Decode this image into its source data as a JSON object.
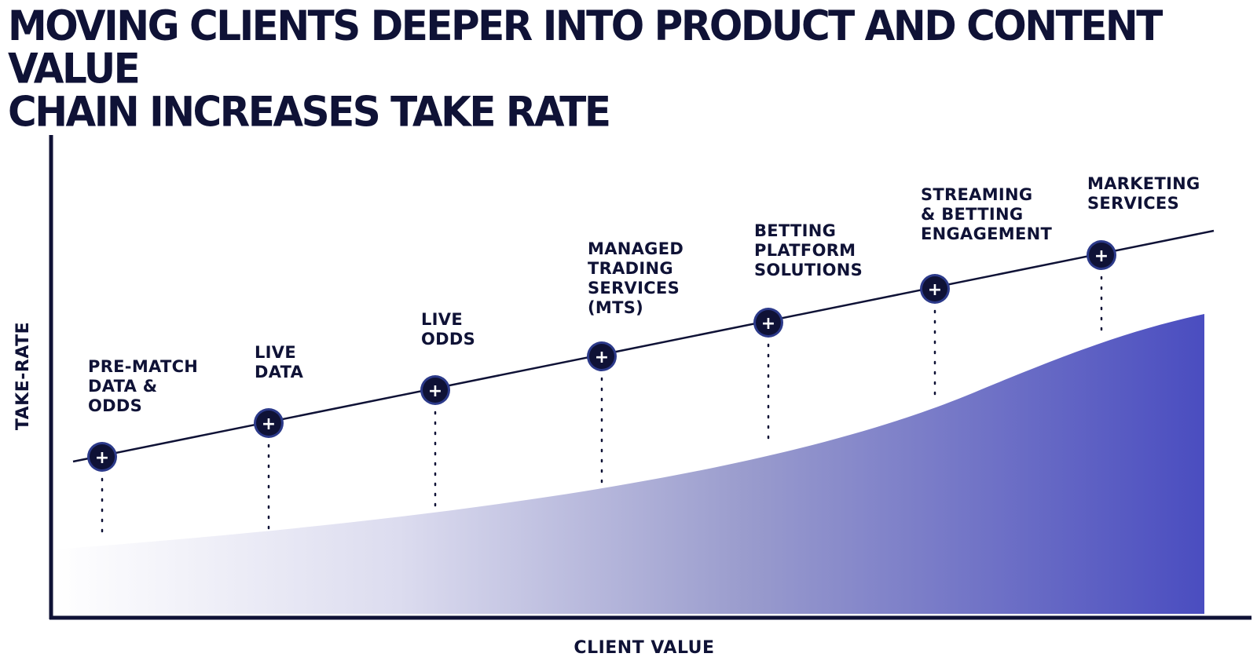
{
  "title": {
    "line1": "MOVING CLIENTS DEEPER INTO PRODUCT AND CONTENT VALUE",
    "line2": "CHAIN INCREASES TAKE RATE"
  },
  "axes": {
    "y_label": "TAKE-RATE",
    "x_label": "CLIENT VALUE"
  },
  "stages": [
    {
      "lines": [
        "PRE-MATCH",
        "DATA &",
        "ODDS"
      ]
    },
    {
      "lines": [
        "LIVE",
        "DATA"
      ]
    },
    {
      "lines": [
        "LIVE",
        "ODDS"
      ]
    },
    {
      "lines": [
        "MANAGED",
        "TRADING",
        "SERVICES",
        "(MTS)"
      ]
    },
    {
      "lines": [
        "BETTING",
        "PLATFORM",
        "SOLUTIONS"
      ]
    },
    {
      "lines": [
        "STREAMING",
        "& BETTING",
        "ENGAGEMENT"
      ]
    },
    {
      "lines": [
        "MARKETING",
        "SERVICES"
      ]
    }
  ],
  "marker_symbol": "+",
  "colors": {
    "navy": "#0f1236",
    "gradient_start": "#ffffff",
    "gradient_end": "#4a4dc0"
  }
}
